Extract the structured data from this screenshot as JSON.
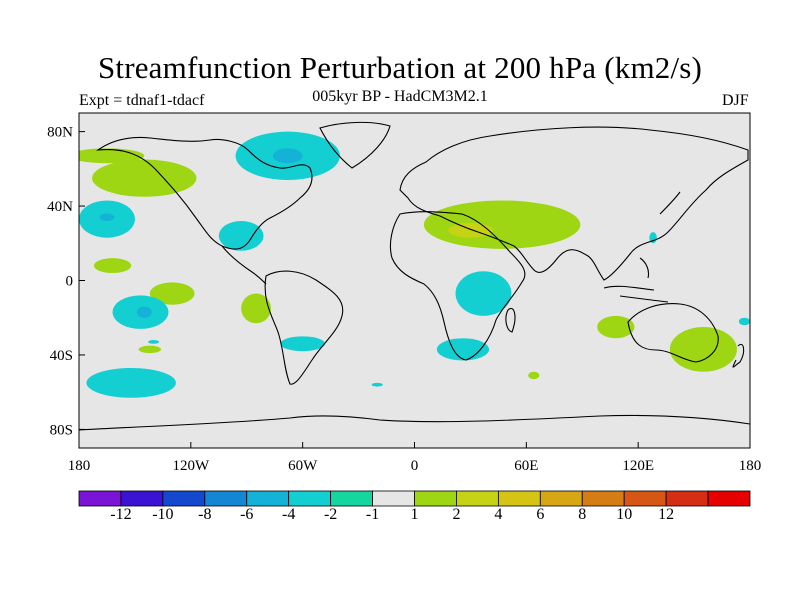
{
  "figure": {
    "title": "Streamfunction Perturbation at 200 hPa (km2/s)",
    "subtitle": "005kyr BP - HadCM3M2.1",
    "experiment": "Expt = tdnaf1-tdacf",
    "season": "DJF"
  },
  "axes": {
    "y_ticks": [
      "80N",
      "40N",
      "0",
      "40S",
      "80S"
    ],
    "x_ticks": [
      "180",
      "120W",
      "60W",
      "0",
      "60E",
      "120E",
      "180"
    ]
  },
  "colorbar": {
    "colors": [
      "#7a14d6",
      "#3a14d2",
      "#1448cf",
      "#1486d4",
      "#14b2d6",
      "#14cfd2",
      "#14d69e",
      "#e6e6e6",
      "#9ed614",
      "#c6d214",
      "#d6c414",
      "#d6a614",
      "#d67c14",
      "#d65614",
      "#d62e14",
      "#e60000"
    ],
    "labels": [
      "-12",
      "-10",
      "-8",
      "-6",
      "-4",
      "-2",
      "-1",
      "1",
      "2",
      "4",
      "6",
      "8",
      "10",
      "12"
    ]
  },
  "map_data": {
    "type": "contour-map",
    "projection": "cylindrical-equidistant",
    "lon_range": [
      -180,
      180
    ],
    "lat_range": [
      -90,
      90
    ],
    "background_value_range": [
      -1,
      1
    ],
    "positive_regions": [
      {
        "name": "north-pacific-ridge",
        "level": 2,
        "center": [
          -145,
          55
        ],
        "radius": [
          28,
          10
        ]
      },
      {
        "name": "north-pacific-arm",
        "level": 2,
        "center": [
          -165,
          67
        ],
        "radius": [
          20,
          4
        ]
      },
      {
        "name": "subtropical-pacific-ne",
        "level": 2,
        "center": [
          -162,
          8
        ],
        "radius": [
          10,
          4
        ]
      },
      {
        "name": "south-pacific-east",
        "level": 2,
        "center": [
          -130,
          -7
        ],
        "radius": [
          12,
          6
        ]
      },
      {
        "name": "south-pacific-small",
        "level": 2,
        "center": [
          -142,
          -37
        ],
        "radius": [
          6,
          2
        ]
      },
      {
        "name": "brazil",
        "level": 2,
        "center": [
          -85,
          -15
        ],
        "radius": [
          8,
          8
        ]
      },
      {
        "name": "north-africa-asia",
        "level": 2,
        "center": [
          47,
          30
        ],
        "radius": [
          42,
          13
        ]
      },
      {
        "name": "middle-east-core",
        "level": 4,
        "center": [
          30,
          27
        ],
        "radius": [
          12,
          4
        ]
      },
      {
        "name": "south-indian",
        "level": 2,
        "center": [
          108,
          -25
        ],
        "radius": [
          10,
          6
        ]
      },
      {
        "name": "australia-southeast",
        "level": 2,
        "center": [
          155,
          -37
        ],
        "radius": [
          18,
          12
        ]
      },
      {
        "name": "south-atlantic-small",
        "level": 2,
        "center": [
          64,
          -51
        ],
        "radius": [
          3,
          2
        ]
      },
      {
        "name": "indian-ocean-south",
        "level": 2,
        "center": [
          150,
          -30
        ],
        "radius": [
          2,
          1
        ]
      }
    ],
    "negative_regions": [
      {
        "name": "canada-arctic",
        "level": -2,
        "center": [
          -68,
          67
        ],
        "radius": [
          28,
          13
        ]
      },
      {
        "name": "canada-core",
        "level": -4,
        "center": [
          -68,
          67
        ],
        "radius": [
          8,
          4
        ]
      },
      {
        "name": "hawaii-region",
        "level": -2,
        "center": [
          -165,
          33
        ],
        "radius": [
          15,
          10
        ]
      },
      {
        "name": "hawaii-core",
        "level": -4,
        "center": [
          -165,
          34
        ],
        "radius": [
          4,
          2
        ]
      },
      {
        "name": "gulf-of-mexico",
        "level": -2,
        "center": [
          -93,
          24
        ],
        "radius": [
          12,
          8
        ]
      },
      {
        "name": "south-pacific-tropics",
        "level": -2,
        "center": [
          -147,
          -17
        ],
        "radius": [
          15,
          9
        ]
      },
      {
        "name": "south-pacific-core",
        "level": -4,
        "center": [
          -145,
          -17
        ],
        "radius": [
          4,
          3
        ]
      },
      {
        "name": "south-pacific-tiny",
        "level": -2,
        "center": [
          -140,
          -33
        ],
        "radius": [
          3,
          1
        ]
      },
      {
        "name": "south-pacific-south",
        "level": -2,
        "center": [
          -152,
          -55
        ],
        "radius": [
          24,
          8
        ]
      },
      {
        "name": "argentina",
        "level": -2,
        "center": [
          -60,
          -34
        ],
        "radius": [
          12,
          4
        ]
      },
      {
        "name": "east-africa",
        "level": -2,
        "center": [
          37,
          -7
        ],
        "radius": [
          15,
          12
        ]
      },
      {
        "name": "south-africa",
        "level": -2,
        "center": [
          26,
          -37
        ],
        "radius": [
          14,
          6
        ]
      },
      {
        "name": "south-atlantic-tiny",
        "level": -2,
        "center": [
          -20,
          -56
        ],
        "radius": [
          3,
          1
        ]
      },
      {
        "name": "philippines",
        "level": -2,
        "center": [
          128,
          23
        ],
        "radius": [
          2,
          3
        ]
      },
      {
        "name": "tasman",
        "level": -2,
        "center": [
          177,
          -22
        ],
        "radius": [
          3,
          2
        ]
      }
    ]
  }
}
